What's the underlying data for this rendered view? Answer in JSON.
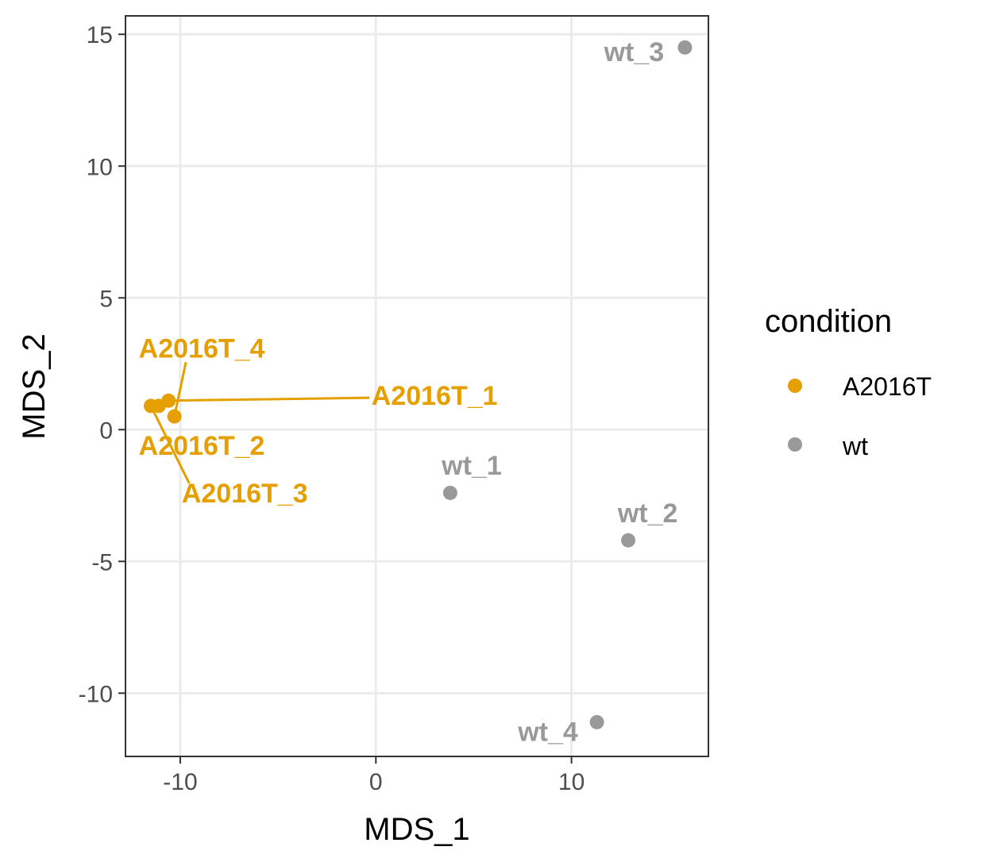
{
  "chart_data": {
    "type": "scatter",
    "xlabel": "MDS_1",
    "ylabel": "MDS_2",
    "xlim": [
      -12.8,
      17.0
    ],
    "ylim": [
      -12.4,
      15.7
    ],
    "x_ticks": [
      -10,
      0,
      10
    ],
    "x_tick_labels": [
      "-10",
      "0",
      "10"
    ],
    "y_ticks": [
      -10,
      -5,
      0,
      5,
      10,
      15
    ],
    "y_tick_labels": [
      "-10",
      "-5",
      "0",
      "5",
      "10",
      "15"
    ],
    "grid": true,
    "legend": {
      "title": "condition",
      "placement": "right",
      "entries": [
        {
          "label": "A2016T",
          "color": "#E69F00"
        },
        {
          "label": "wt",
          "color": "#999999"
        }
      ]
    },
    "series": [
      {
        "name": "A2016T",
        "color": "#E69F00",
        "points": [
          {
            "x": -10.6,
            "y": 1.1,
            "label": "A2016T_1",
            "label_x": 3.0,
            "label_y": 1.3
          },
          {
            "x": -11.1,
            "y": 0.9,
            "label": "A2016T_2",
            "label_x": -8.9,
            "label_y": -0.6
          },
          {
            "x": -11.5,
            "y": 0.9,
            "label": "A2016T_3",
            "label_x": -6.7,
            "label_y": -2.4
          },
          {
            "x": -10.3,
            "y": 0.5,
            "label": "A2016T_4",
            "label_x": -8.9,
            "label_y": 3.1
          }
        ]
      },
      {
        "name": "wt",
        "color": "#999999",
        "points": [
          {
            "x": 3.8,
            "y": -2.4,
            "label": "wt_1",
            "label_x": 4.9,
            "label_y": -1.35
          },
          {
            "x": 12.9,
            "y": -4.2,
            "label": "wt_2",
            "label_x": 13.9,
            "label_y": -3.15
          },
          {
            "x": 15.8,
            "y": 14.5,
            "label": "wt_3",
            "label_x": 13.2,
            "label_y": 14.35
          },
          {
            "x": 11.3,
            "y": -11.1,
            "label": "wt_4",
            "label_x": 8.8,
            "label_y": -11.45
          }
        ]
      }
    ]
  }
}
